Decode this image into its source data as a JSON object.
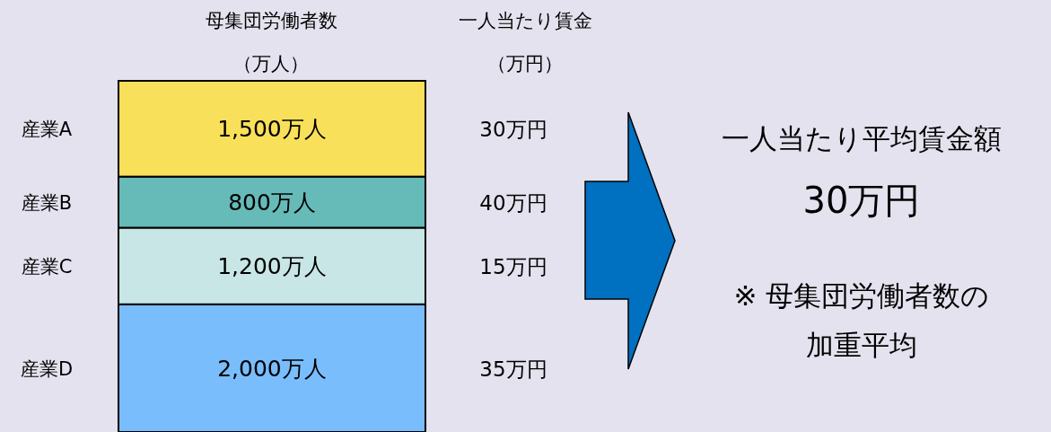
{
  "chart_data": {
    "type": "bar",
    "stacked": true,
    "categories": [
      null
    ],
    "legend": false,
    "series": [
      {
        "name": "産業D",
        "color": "#79bdfc",
        "values": [
          2000
        ],
        "value_labels": [
          "2,000万人"
        ]
      },
      {
        "name": "産業C",
        "color": "#c8e6e6",
        "values": [
          1200
        ],
        "value_labels": [
          "1,200万人"
        ]
      },
      {
        "name": "産業B",
        "color": "#66bab8",
        "values": [
          800
        ],
        "value_labels": [
          "800万人"
        ]
      },
      {
        "name": "産業A",
        "color": "#f9e05a",
        "values": [
          1500
        ],
        "value_labels": [
          "1,500万人"
        ]
      }
    ],
    "annotations": [
      "母集団労働者数",
      "（万人）",
      "一人当たり賃金",
      "（万円）",
      "35万円",
      "15万円",
      "40万円",
      "30万円",
      "一人当たり平均賃金額",
      "30万円",
      "※ 母集団労働者数の",
      "加重平均"
    ]
  }
}
